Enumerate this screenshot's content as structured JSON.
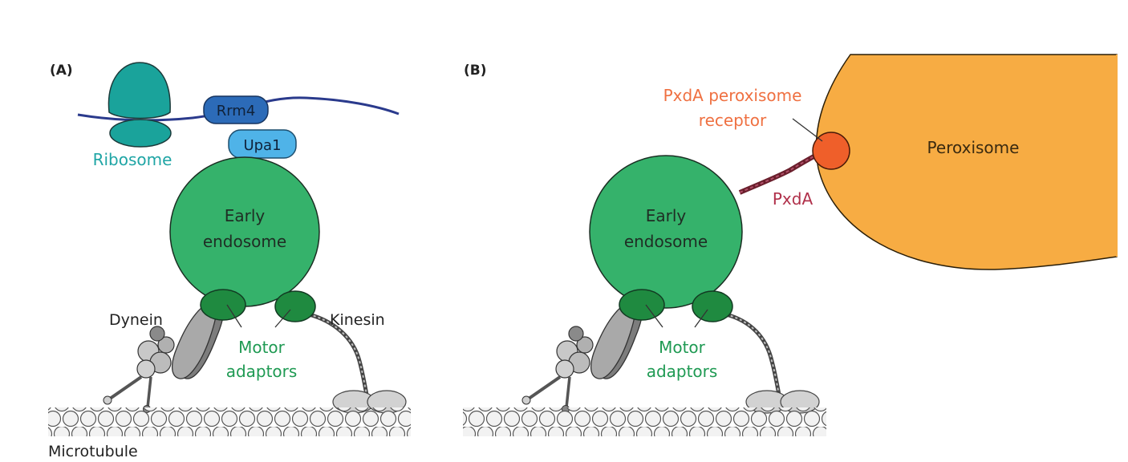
{
  "panels": {
    "a_label": "(A)",
    "b_label": "(B)"
  },
  "panel_a": {
    "ribosome": "Ribosome",
    "rrm4": "Rrm4",
    "upa1": "Upa1",
    "endosome_line1": "Early",
    "endosome_line2": "endosome",
    "dynein": "Dynein",
    "kinesin": "Kinesin",
    "adaptors_line1": "Motor",
    "adaptors_line2": "adaptors",
    "microtubule": "Microtubule"
  },
  "panel_b": {
    "receptor_line1": "PxdA peroxisome",
    "receptor_line2": "receptor",
    "peroxisome": "Peroxisome",
    "pxda": "PxdA",
    "endosome_line1": "Early",
    "endosome_line2": "endosome",
    "adaptors_line1": "Motor",
    "adaptors_line2": "adaptors"
  },
  "colors": {
    "endosome": "#35b26b",
    "adaptor": "#1f8a40",
    "ribosome": "#1aa39b",
    "rrm4": "#2c6bb8",
    "upa1": "#4fb3e8",
    "mrna": "#2a3a8c",
    "peroxisome": "#f7ac43",
    "receptor": "#ef5f2a",
    "pxda": "#8a2a3a",
    "motor": "#9e9e9e"
  }
}
